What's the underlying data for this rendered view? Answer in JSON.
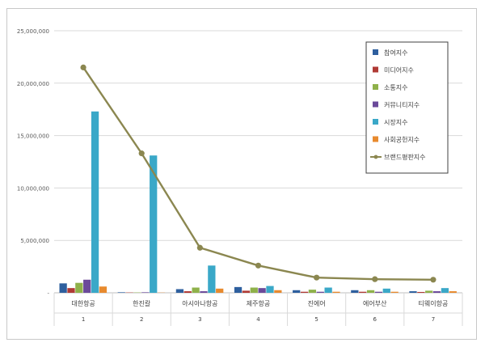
{
  "chart_data": {
    "type": "bar",
    "title": "",
    "xlabel": "",
    "ylabel": "",
    "ylim": [
      0,
      25000000
    ],
    "yticks": [
      0,
      5000000,
      10000000,
      15000000,
      20000000,
      25000000
    ],
    "ytick_labels": [
      "-",
      "5,000,000",
      "10,000,000",
      "15,000,000",
      "20,000,000",
      "25,000,000"
    ],
    "categories": [
      "대한항공",
      "한진칼",
      "아시아나항공",
      "제주항공",
      "진에어",
      "에어부산",
      "티웨이항공"
    ],
    "category_ranks": [
      "1",
      "2",
      "3",
      "4",
      "5",
      "6",
      "7"
    ],
    "grid": true,
    "legend_position": "top-right",
    "series": [
      {
        "name": "참여지수",
        "type": "bar",
        "color": "#2e5f9e",
        "values": [
          900000,
          50000,
          350000,
          550000,
          250000,
          250000,
          150000
        ]
      },
      {
        "name": "미디어지수",
        "type": "bar",
        "color": "#b03a35",
        "values": [
          450000,
          30000,
          150000,
          200000,
          100000,
          100000,
          80000
        ]
      },
      {
        "name": "소통지수",
        "type": "bar",
        "color": "#8fb14a",
        "values": [
          950000,
          30000,
          500000,
          500000,
          300000,
          250000,
          200000
        ]
      },
      {
        "name": "커뮤니티지수",
        "type": "bar",
        "color": "#6b4a9a",
        "values": [
          1250000,
          50000,
          150000,
          450000,
          100000,
          100000,
          150000
        ]
      },
      {
        "name": "시장지수",
        "type": "bar",
        "color": "#3aa8c8",
        "values": [
          17300000,
          13100000,
          2600000,
          650000,
          500000,
          400000,
          450000
        ]
      },
      {
        "name": "사회공헌지수",
        "type": "bar",
        "color": "#e88a2e",
        "values": [
          600000,
          20000,
          400000,
          250000,
          100000,
          100000,
          150000
        ]
      },
      {
        "name": "브랜드평판지수",
        "type": "line",
        "color": "#8b8750",
        "values": [
          21500000,
          13300000,
          4300000,
          2600000,
          1450000,
          1300000,
          1250000
        ]
      }
    ]
  }
}
